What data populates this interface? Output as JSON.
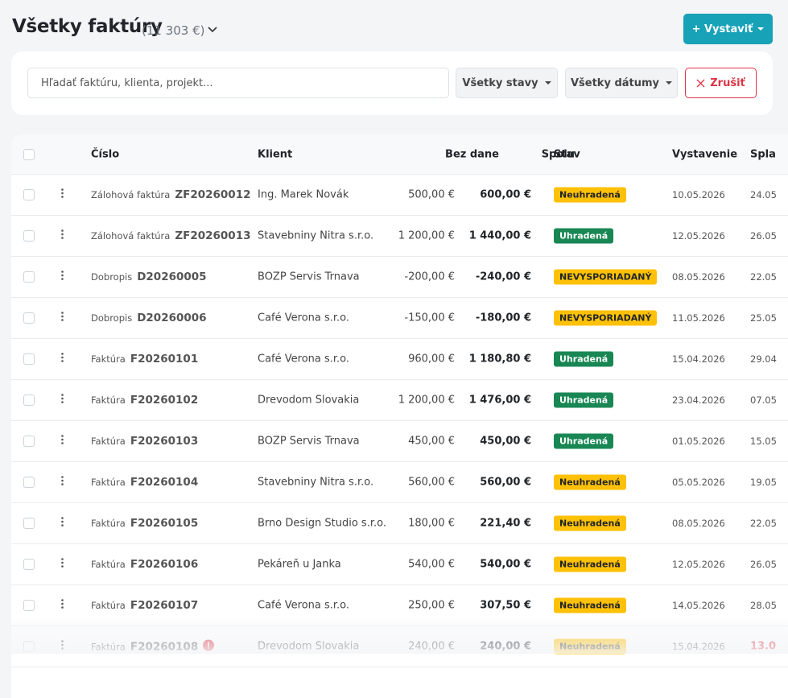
{
  "header": {
    "title": "Všetky faktúry",
    "total": "(11 303 €)",
    "create_button": "+ Vystaviť"
  },
  "filters": {
    "search_placeholder": "Hľadať faktúru, klienta, projekt...",
    "status": "Všetky stavy",
    "dates": "Všetky dátumy",
    "cancel": "Zrušiť"
  },
  "table": {
    "columns": [
      "Číslo",
      "Klient",
      "Bez dane",
      "Spolu",
      "Stav",
      "Vystavenie",
      "Spla"
    ],
    "rows": [
      {
        "kind": "Zálohová faktúra",
        "number": "ZF20260012",
        "client": "Ing. Marek Novák",
        "net": "500,00 €",
        "total": "600,00 €",
        "status": "Neuhradená",
        "badge_color": "#ffc107",
        "issued": "10.05.2026",
        "due": "24.05"
      },
      {
        "kind": "Zálohová faktúra",
        "number": "ZF20260013",
        "client": "Stavebniny Nitra s.r.o.",
        "net": "1 200,00 €",
        "total": "1 440,00 €",
        "status": "Uhradená",
        "badge_color": "#198754",
        "issued": "12.05.2026",
        "due": "26.05"
      },
      {
        "kind": "Dobropis",
        "number": "D20260005",
        "client": "BOZP Servis Trnava",
        "net": "-200,00 €",
        "total": "-240,00 €",
        "status": "NEVYSPORIADANÝ",
        "badge_color": "#ffc107",
        "issued": "08.05.2026",
        "due": "22.05"
      },
      {
        "kind": "Dobropis",
        "number": "D20260006",
        "client": "Café Verona s.r.o.",
        "net": "-150,00 €",
        "total": "-180,00 €",
        "status": "NEVYSPORIADANÝ",
        "badge_color": "#ffc107",
        "issued": "11.05.2026",
        "due": "25.05"
      },
      {
        "kind": "Faktúra",
        "number": "F20260101",
        "client": "Café Verona s.r.o.",
        "net": "960,00 €",
        "total": "1 180,80 €",
        "status": "Uhradená",
        "badge_color": "#198754",
        "issued": "15.04.2026",
        "due": "29.04"
      },
      {
        "kind": "Faktúra",
        "number": "F20260102",
        "client": "Drevodom Slovakia",
        "net": "1 200,00 €",
        "total": "1 476,00 €",
        "status": "Uhradená",
        "badge_color": "#198754",
        "issued": "23.04.2026",
        "due": "07.05"
      },
      {
        "kind": "Faktúra",
        "number": "F20260103",
        "client": "BOZP Servis Trnava",
        "net": "450,00 €",
        "total": "450,00 €",
        "status": "Uhradená",
        "badge_color": "#198754",
        "issued": "01.05.2026",
        "due": "15.05"
      },
      {
        "kind": "Faktúra",
        "number": "F20260104",
        "client": "Stavebniny Nitra s.r.o.",
        "net": "560,00 €",
        "total": "560,00 €",
        "status": "Neuhradená",
        "badge_color": "#ffc107",
        "issued": "05.05.2026",
        "due": "19.05"
      },
      {
        "kind": "Faktúra",
        "number": "F20260105",
        "client": "Brno Design Studio s.r.o.",
        "net": "180,00 €",
        "total": "221,40 €",
        "status": "Neuhradená",
        "badge_color": "#ffc107",
        "issued": "08.05.2026",
        "due": "22.05"
      },
      {
        "kind": "Faktúra",
        "number": "F20260106",
        "client": "Pekáreň u Janka",
        "net": "540,00 €",
        "total": "540,00 €",
        "status": "Neuhradená",
        "badge_color": "#ffc107",
        "issued": "12.05.2026",
        "due": "26.05"
      },
      {
        "kind": "Faktúra",
        "number": "F20260107",
        "client": "Café Verona s.r.o.",
        "net": "250,00 €",
        "total": "307,50 €",
        "status": "Neuhradená",
        "badge_color": "#ffc107",
        "issued": "14.05.2026",
        "due": "28.05"
      },
      {
        "kind": "Faktúra",
        "number": "F20260108",
        "client": "Drevodom Slovakia",
        "net": "240,00 €",
        "total": "240,00 €",
        "status": "Neuhradená",
        "badge_color": "#ffc107",
        "issued": "15.04.2026",
        "due": "13.0"
      }
    ]
  }
}
